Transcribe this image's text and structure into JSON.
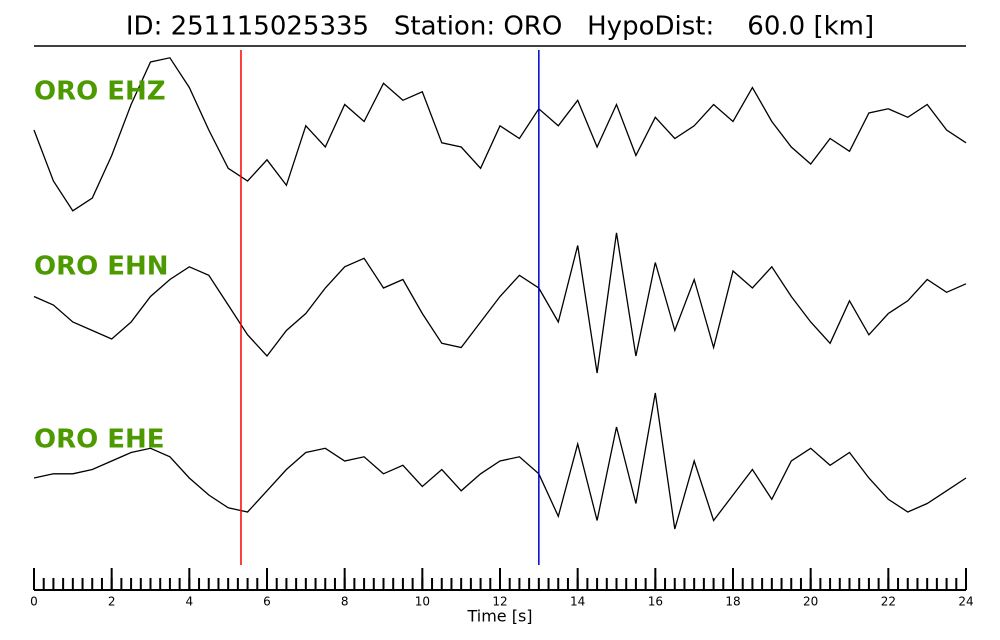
{
  "chart_data": {
    "type": "seismogram",
    "title": "ID: 251115025335   Station: ORO   HypoDist:    60.0 [km]",
    "xlabel": "Time [s]",
    "xlim": [
      0,
      24
    ],
    "xticks": [
      0,
      2,
      4,
      6,
      8,
      10,
      12,
      14,
      16,
      18,
      20,
      22,
      24
    ],
    "xminor_step": 0.25,
    "ylim": [
      -1,
      1
    ],
    "label_color": "#4c9a00",
    "x": [
      0,
      0.5,
      1,
      1.5,
      2,
      2.5,
      3,
      3.5,
      4,
      4.5,
      5,
      5.5,
      6,
      6.5,
      7,
      7.5,
      8,
      8.5,
      9,
      9.5,
      10,
      10.5,
      11,
      11.5,
      12,
      12.5,
      13,
      13.5,
      14,
      14.5,
      15,
      15.5,
      16,
      16.5,
      17,
      17.5,
      18,
      18.5,
      19,
      19.5,
      20,
      20.5,
      21,
      21.5,
      22,
      22.5,
      23,
      23.5,
      24
    ],
    "series": [
      {
        "name": "ORO EHZ",
        "color": "#000000",
        "values": [
          0.0,
          -0.6,
          -0.95,
          -0.8,
          -0.3,
          0.3,
          0.8,
          0.85,
          0.5,
          0.0,
          -0.45,
          -0.6,
          -0.35,
          -0.65,
          0.05,
          -0.2,
          0.3,
          0.1,
          0.55,
          0.35,
          0.45,
          -0.15,
          -0.2,
          -0.45,
          0.05,
          -0.1,
          0.25,
          0.05,
          0.35,
          -0.2,
          0.3,
          -0.3,
          0.15,
          -0.1,
          0.05,
          0.3,
          0.1,
          0.5,
          0.1,
          -0.2,
          -0.4,
          -0.1,
          -0.25,
          0.2,
          0.25,
          0.15,
          0.3,
          0.0,
          -0.15
        ]
      },
      {
        "name": "ORO EHN",
        "color": "#000000",
        "values": [
          0.1,
          0.0,
          -0.2,
          -0.3,
          -0.4,
          -0.2,
          0.1,
          0.3,
          0.45,
          0.35,
          0.0,
          -0.35,
          -0.6,
          -0.3,
          -0.1,
          0.2,
          0.45,
          0.55,
          0.2,
          0.3,
          -0.1,
          -0.45,
          -0.5,
          -0.2,
          0.1,
          0.35,
          0.2,
          -0.2,
          0.7,
          -0.8,
          0.85,
          -0.6,
          0.5,
          -0.3,
          0.3,
          -0.5,
          0.4,
          0.2,
          0.45,
          0.1,
          -0.2,
          -0.45,
          0.05,
          -0.35,
          -0.1,
          0.05,
          0.3,
          0.15,
          0.25
        ]
      },
      {
        "name": "ORO EHE",
        "color": "#000000",
        "values": [
          0.0,
          0.05,
          0.05,
          0.1,
          0.2,
          0.3,
          0.35,
          0.25,
          0.0,
          -0.2,
          -0.35,
          -0.4,
          -0.15,
          0.1,
          0.3,
          0.35,
          0.2,
          0.25,
          0.05,
          0.15,
          -0.1,
          0.1,
          -0.15,
          0.05,
          0.2,
          0.25,
          0.05,
          -0.45,
          0.4,
          -0.5,
          0.6,
          -0.3,
          1.0,
          -0.6,
          0.2,
          -0.5,
          -0.2,
          0.1,
          -0.25,
          0.2,
          0.35,
          0.15,
          0.3,
          0.0,
          -0.25,
          -0.4,
          -0.3,
          -0.15,
          0.0
        ]
      }
    ],
    "picks": [
      {
        "x": 5.33,
        "color": "#ff0000"
      },
      {
        "x": 13.0,
        "color": "#0000cc"
      }
    ]
  }
}
